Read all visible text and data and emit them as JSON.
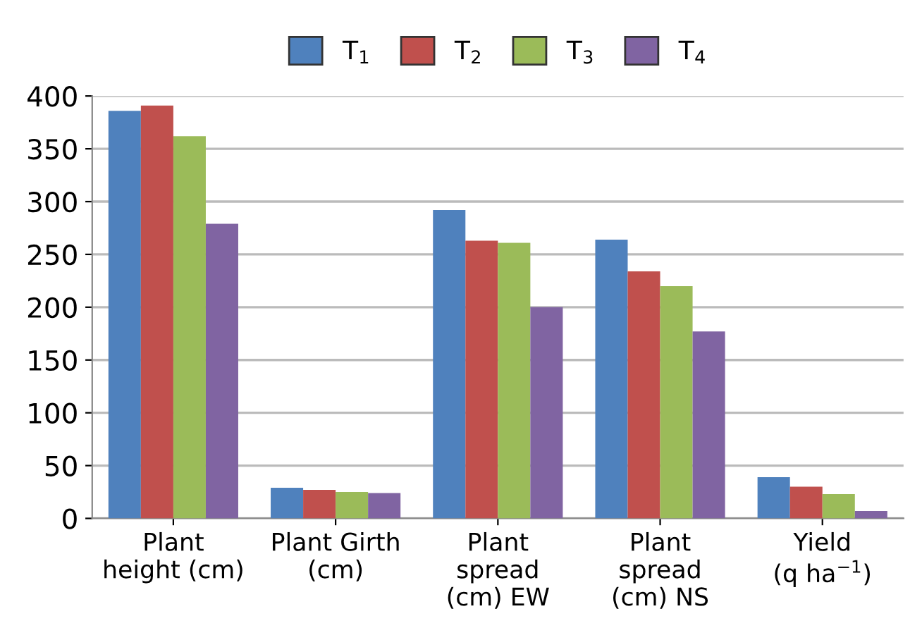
{
  "chart_data": {
    "type": "bar",
    "categories": [
      "Plant\nheight (cm)",
      "Plant Girth\n(cm)",
      "Plant\nspread\n(cm) EW",
      "Plant\nspread\n(cm) NS",
      "Yield\n(q ha$^{−1}$)"
    ],
    "series": [
      {
        "name": "T$_{1}$",
        "color": "#4f81bd",
        "values": [
          386,
          29,
          292,
          264,
          39
        ]
      },
      {
        "name": "T$_{2}$",
        "color": "#c0504d",
        "values": [
          391,
          27,
          263,
          234,
          30
        ]
      },
      {
        "name": "T$_{3}$",
        "color": "#9bbb59",
        "values": [
          362,
          25,
          261,
          220,
          23
        ]
      },
      {
        "name": "T$_{4}$",
        "color": "#8064a2",
        "values": [
          279,
          24,
          200,
          177,
          7
        ]
      }
    ],
    "ylim": [
      0,
      400
    ],
    "yticks": [
      0,
      50,
      100,
      150,
      200,
      250,
      300,
      350,
      400
    ],
    "grid": "y",
    "legend": "top"
  }
}
